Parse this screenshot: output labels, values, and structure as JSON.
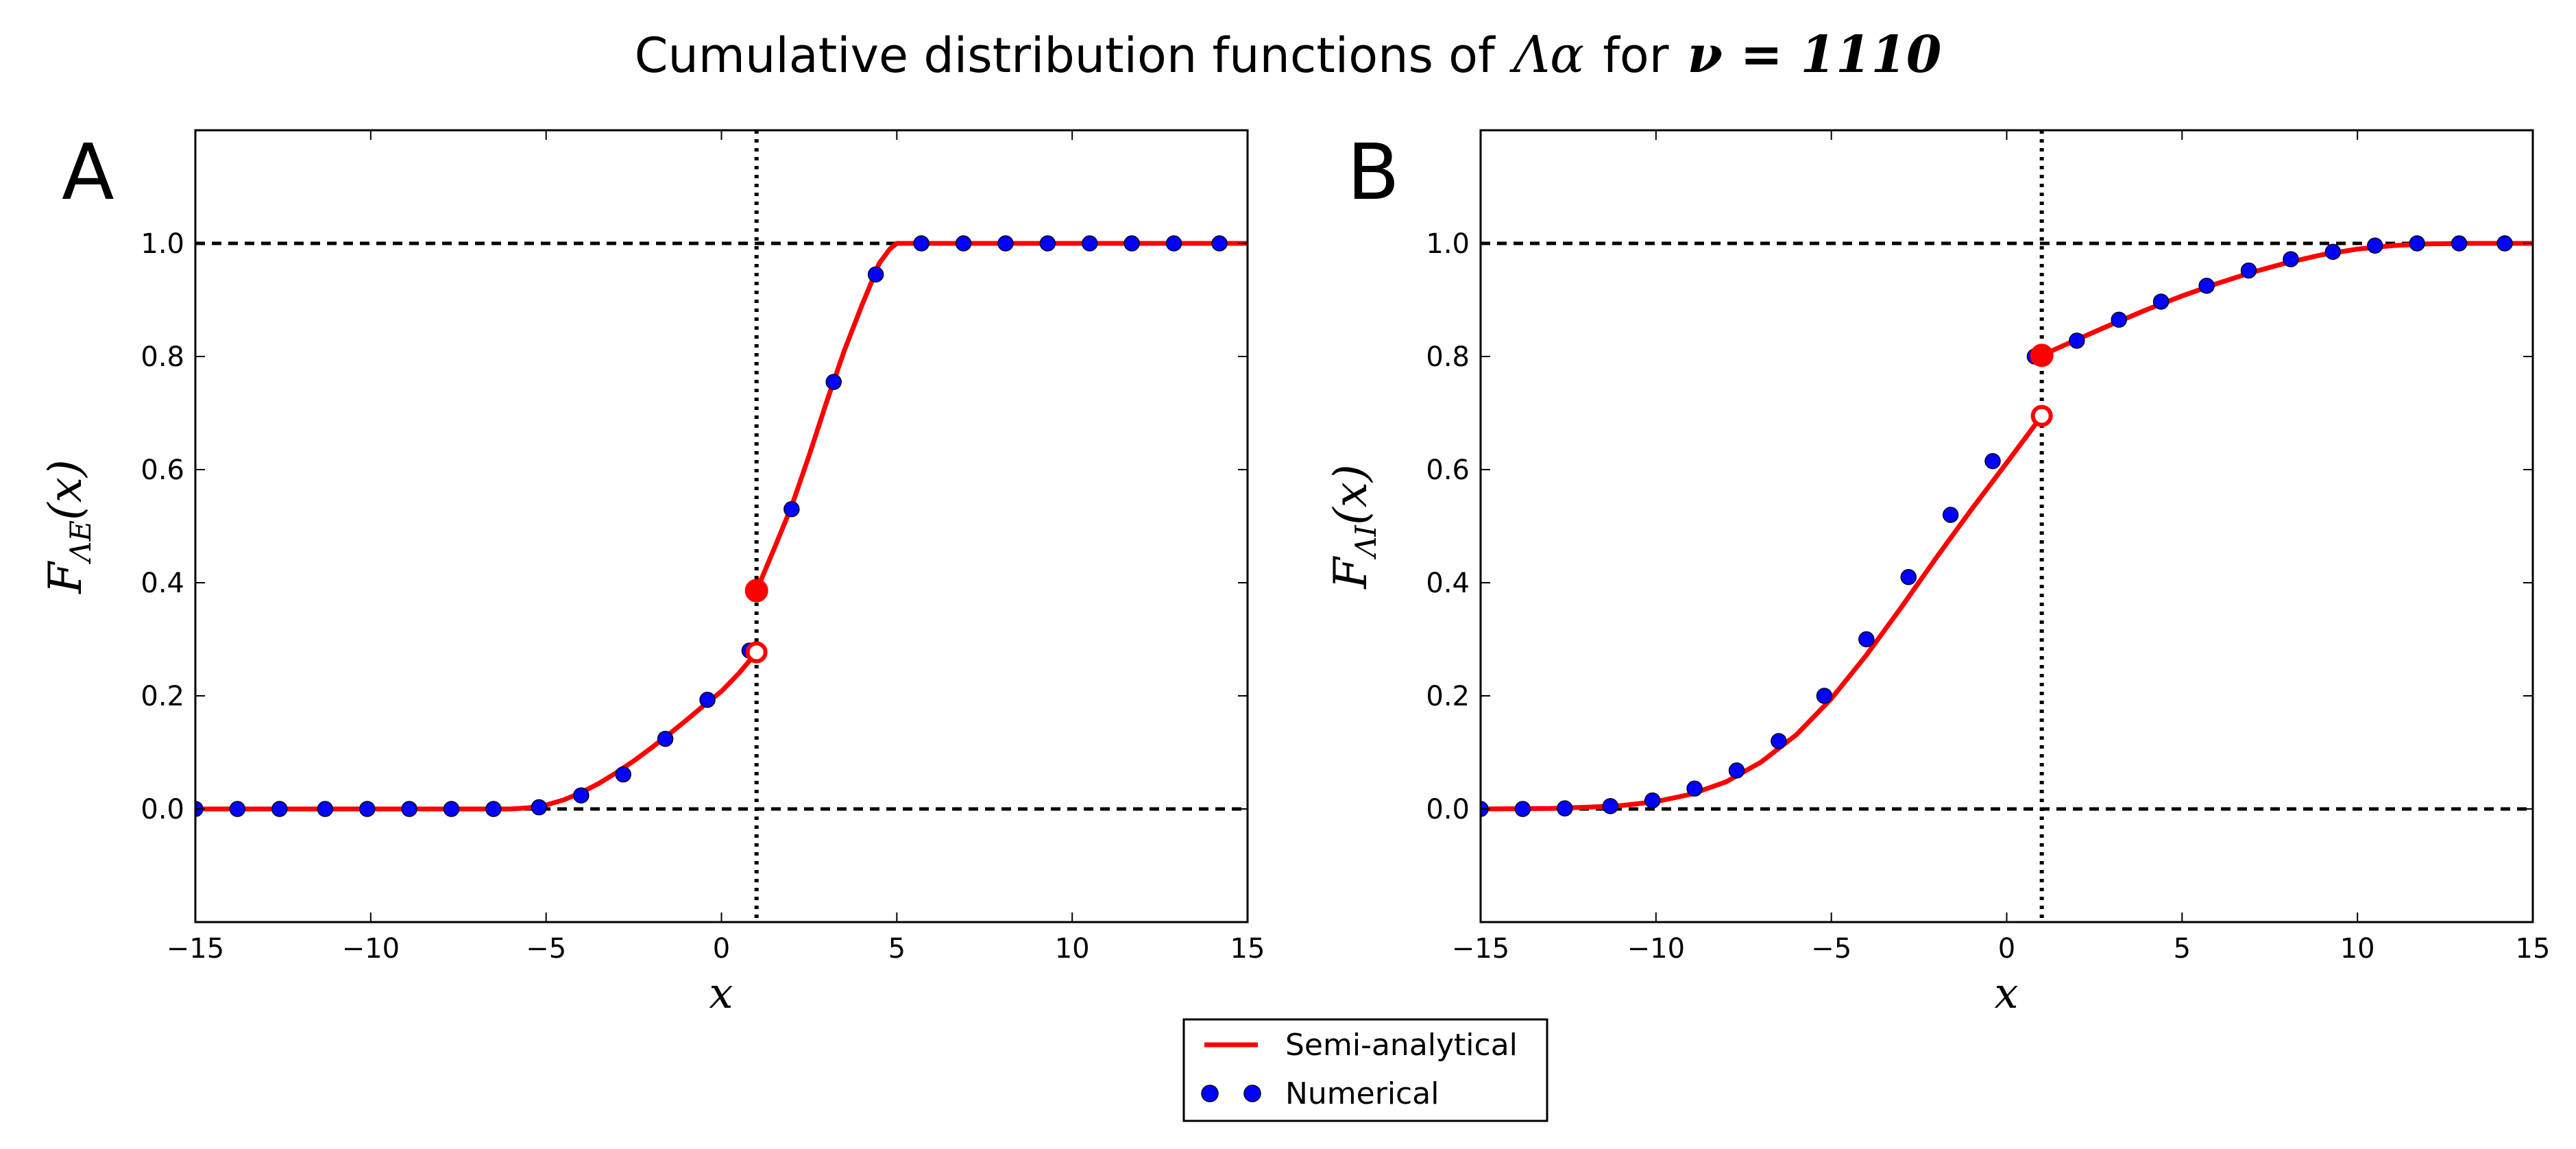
{
  "figure": {
    "title_prefix": "Cumulative distribution functions of",
    "title_symbol": "Λα",
    "title_for": "for",
    "title_nu": "ν = 1110"
  },
  "colors": {
    "semi_analytical": "#ff0000",
    "numerical": "#0000ff",
    "reference_lines": "#000000"
  },
  "legend": {
    "semi_analytical_label": "Semi-analytical",
    "numerical_label": "Numerical"
  },
  "chart_data": [
    {
      "type": "line",
      "panel_label": "A",
      "xlabel": "x",
      "ylabel": "FΛE(x)",
      "ylabel_main": "F",
      "ylabel_sub": "ΛE",
      "ylabel_arg": "(x)",
      "xlim": [
        -15,
        15
      ],
      "ylim": [
        -0.2,
        1.2
      ],
      "xticks": [
        -15,
        -10,
        -5,
        0,
        5,
        10,
        15
      ],
      "xtick_labels": [
        "−15",
        "−10",
        "−5",
        "0",
        "5",
        "10",
        "15"
      ],
      "yticks": [
        0.0,
        0.2,
        0.4,
        0.6,
        0.8,
        1.0
      ],
      "ytick_labels": [
        "0.0",
        "0.2",
        "0.4",
        "0.6",
        "0.8",
        "1.0"
      ],
      "reference_lines": {
        "horizontal": [
          0,
          1
        ],
        "vertical": [
          1
        ]
      },
      "series": [
        {
          "name": "Semi-analytical",
          "style": "line",
          "segments": [
            {
              "x": [
                -15,
                -6,
                -5.5,
                -5,
                -4.5,
                -4,
                -3.5,
                -3,
                -2.5,
                -2,
                -1.5,
                -1,
                -0.5,
                0,
                0.5,
                1
              ],
              "y": [
                0,
                0,
                0.002,
                0.007,
                0.016,
                0.029,
                0.045,
                0.064,
                0.085,
                0.108,
                0.132,
                0.157,
                0.183,
                0.208,
                0.24,
                0.277
              ]
            },
            {
              "x": [
                1,
                1.5,
                2,
                2.5,
                3,
                3.5,
                4,
                4.5,
                4.8,
                5,
                15
              ],
              "y": [
                0.386,
                0.46,
                0.535,
                0.625,
                0.72,
                0.81,
                0.89,
                0.965,
                0.99,
                1.0,
                1.0
              ]
            }
          ],
          "open_marker": {
            "x": 1,
            "y": 0.277
          },
          "closed_marker": {
            "x": 1,
            "y": 0.386
          }
        },
        {
          "name": "Numerical",
          "style": "points",
          "x": [
            -15,
            -13.8,
            -12.6,
            -11.3,
            -10.1,
            -8.9,
            -7.7,
            -6.5,
            -5.2,
            -4,
            -2.8,
            -1.6,
            -0.4,
            0.8,
            2,
            3.2,
            4.4,
            5.7,
            6.9,
            8.1,
            9.3,
            10.5,
            11.7,
            12.9,
            14.2
          ],
          "y": [
            0,
            0,
            0,
            0,
            0,
            0,
            0,
            0,
            0.003,
            0.024,
            0.061,
            0.124,
            0.193,
            0.28,
            0.53,
            0.755,
            0.945,
            1.0,
            1.0,
            1.0,
            1.0,
            1.0,
            1.0,
            1.0,
            1.0
          ]
        }
      ]
    },
    {
      "type": "line",
      "panel_label": "B",
      "xlabel": "x",
      "ylabel": "FΛI(x)",
      "ylabel_main": "F",
      "ylabel_sub": "ΛI",
      "ylabel_arg": "(x)",
      "xlim": [
        -15,
        15
      ],
      "ylim": [
        -0.2,
        1.2
      ],
      "xticks": [
        -15,
        -10,
        -5,
        0,
        5,
        10,
        15
      ],
      "xtick_labels": [
        "−15",
        "−10",
        "−5",
        "0",
        "5",
        "10",
        "15"
      ],
      "yticks": [
        0.0,
        0.2,
        0.4,
        0.6,
        0.8,
        1.0
      ],
      "ytick_labels": [
        "0.0",
        "0.2",
        "0.4",
        "0.6",
        "0.8",
        "1.0"
      ],
      "reference_lines": {
        "horizontal": [
          0,
          1
        ],
        "vertical": [
          1
        ]
      },
      "series": [
        {
          "name": "Semi-analytical",
          "style": "line",
          "segments": [
            {
              "x": [
                -15,
                -14,
                -13,
                -12,
                -11,
                -10,
                -9,
                -8,
                -7,
                -6,
                -5,
                -4,
                -3,
                -2,
                -1,
                0,
                1
              ],
              "y": [
                0,
                0.0005,
                0.001,
                0.003,
                0.006,
                0.013,
                0.026,
                0.048,
                0.083,
                0.131,
                0.195,
                0.272,
                0.357,
                0.445,
                0.53,
                0.612,
                0.695
              ]
            },
            {
              "x": [
                1,
                2,
                3,
                4,
                5,
                6,
                7,
                8,
                9,
                10,
                11,
                12,
                13,
                15
              ],
              "y": [
                0.802,
                0.83,
                0.857,
                0.883,
                0.907,
                0.929,
                0.949,
                0.966,
                0.98,
                0.99,
                0.996,
                0.999,
                1.0,
                1.0
              ]
            }
          ],
          "open_marker": {
            "x": 1,
            "y": 0.695
          },
          "closed_marker": {
            "x": 1,
            "y": 0.802
          }
        },
        {
          "name": "Numerical",
          "style": "points",
          "x": [
            -15,
            -13.8,
            -12.6,
            -11.3,
            -10.1,
            -8.9,
            -7.7,
            -6.5,
            -5.2,
            -4,
            -2.8,
            -1.6,
            -0.4,
            0.8,
            2,
            3.2,
            4.4,
            5.7,
            6.9,
            8.1,
            9.3,
            10.5,
            11.7,
            12.9,
            14.2
          ],
          "y": [
            0,
            0,
            0.001,
            0.005,
            0.015,
            0.036,
            0.068,
            0.12,
            0.2,
            0.3,
            0.41,
            0.52,
            0.615,
            0.8,
            0.828,
            0.865,
            0.897,
            0.925,
            0.952,
            0.972,
            0.985,
            0.996,
            1.0,
            1.0,
            1.0
          ]
        }
      ]
    }
  ]
}
